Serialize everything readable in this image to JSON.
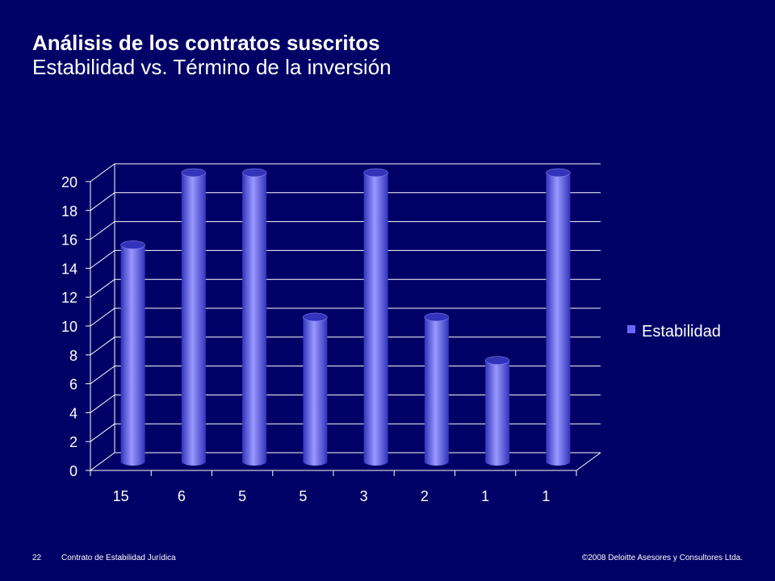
{
  "slide": {
    "title": "Análisis de los contratos suscritos",
    "subtitle": "Estabilidad vs. Término de la inversión",
    "page_number": "22",
    "footer_left": "Contrato de Estabilidad Jurídica",
    "footer_right": "©2008 Deloitte Asesores y Consultores Ltda."
  },
  "colors": {
    "background": "#000066",
    "bar": "#6666ff",
    "bar_dark": "#3333bb",
    "bar_light": "#9999ff",
    "grid": "#ffffff"
  },
  "chart_data": {
    "type": "bar",
    "style": "3d-cylinder",
    "categories": [
      "15",
      "6",
      "5",
      "5",
      "3",
      "2",
      "1",
      "1"
    ],
    "series": [
      {
        "name": "Estabilidad",
        "values": [
          15,
          20,
          20,
          10,
          20,
          10,
          7,
          20
        ]
      }
    ],
    "yticks": [
      "0",
      "2",
      "4",
      "6",
      "8",
      "10",
      "12",
      "14",
      "16",
      "18",
      "20"
    ],
    "ylim": [
      0,
      20
    ],
    "grid": true,
    "legend_position": "right"
  }
}
